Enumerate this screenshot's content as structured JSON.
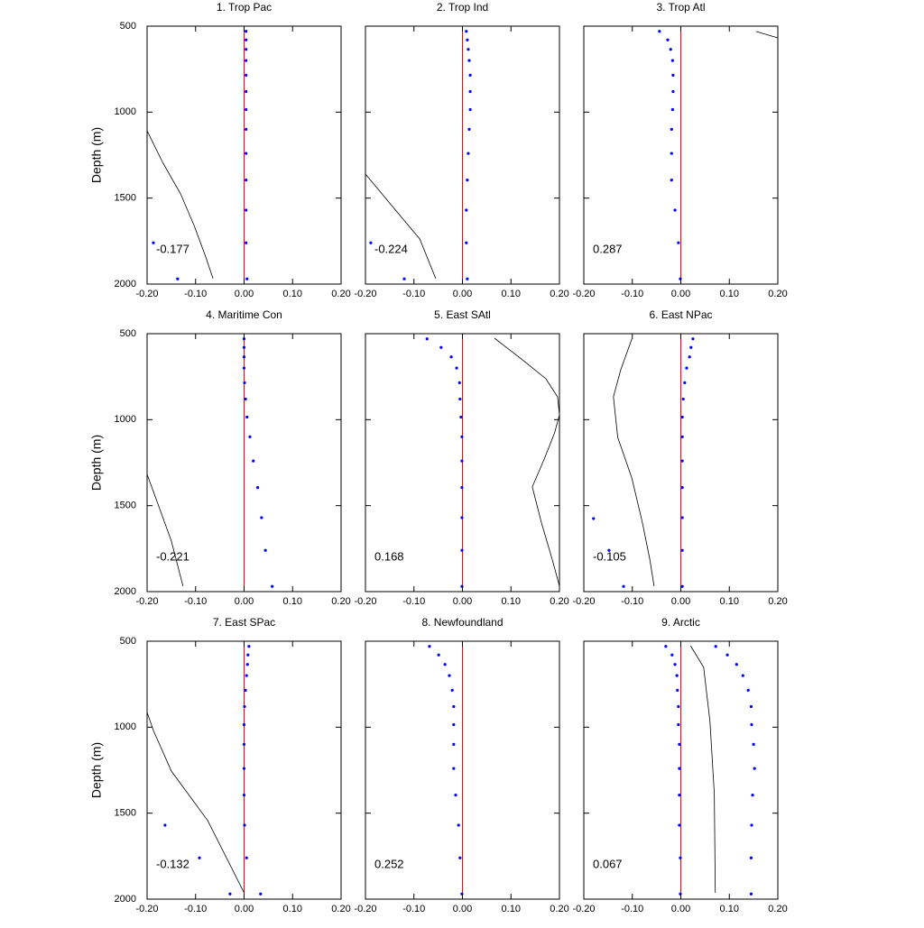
{
  "chart_data": [
    {
      "type": "profile",
      "title": "1. Trop Pac",
      "ylabel": "Depth (m)",
      "show_ytick_labels": true,
      "annotation": "-0.177",
      "xlim": [
        -0.2,
        0.2
      ],
      "xticks": [
        {
          "value": -0.2,
          "label": "-0.20"
        },
        {
          "value": -0.1,
          "label": "-0.10"
        },
        {
          "value": 0,
          "label": "0.00"
        },
        {
          "value": 0.1,
          "label": "0.10"
        },
        {
          "value": 0.2,
          "label": "0.20"
        }
      ],
      "ylim": [
        500,
        2000
      ],
      "yticks": [
        500,
        1000,
        1500,
        2000
      ],
      "y_reversed": true,
      "vline": 0,
      "vline_color": "#ff0000",
      "series": [
        {
          "style": "dots",
          "color": "#0000ff",
          "x": [
            0.004,
            0.004,
            0.004,
            0.004,
            0.004,
            0.004,
            0.004,
            0.004,
            0.004,
            0.004,
            0.004,
            0.004,
            0.006
          ],
          "y": [
            530,
            580,
            635,
            700,
            785,
            880,
            985,
            1100,
            1240,
            1395,
            1570,
            1760,
            1970
          ]
        },
        {
          "style": "dots",
          "color": "#0000ff",
          "x": [
            -0.187,
            -0.137
          ],
          "y": [
            1760,
            1970
          ]
        },
        {
          "style": "line",
          "color": "#000000",
          "x": [
            -0.2,
            -0.168,
            -0.131,
            -0.103,
            -0.079,
            -0.064
          ],
          "y": [
            1108,
            1292,
            1475,
            1659,
            1842,
            1968
          ]
        }
      ]
    },
    {
      "type": "profile",
      "title": "2. Trop Ind",
      "show_ytick_labels": false,
      "annotation": "-0.224",
      "xlim": [
        -0.2,
        0.2
      ],
      "xticks": [
        {
          "value": -0.2,
          "label": "-0.20"
        },
        {
          "value": -0.1,
          "label": "-0.10"
        },
        {
          "value": 0,
          "label": "0.00"
        },
        {
          "value": 0.1,
          "label": "0.10"
        },
        {
          "value": 0.2,
          "label": "0.20"
        }
      ],
      "ylim": [
        500,
        2000
      ],
      "yticks": [
        500,
        1000,
        1500,
        2000
      ],
      "y_reversed": true,
      "vline": 0,
      "vline_color": "#ff0000",
      "series": [
        {
          "style": "dots",
          "color": "#0000ff",
          "x": [
            0.008,
            0.01,
            0.012,
            0.014,
            0.016,
            0.016,
            0.016,
            0.014,
            0.012,
            0.01,
            0.008,
            0.008,
            0.01
          ],
          "y": [
            530,
            580,
            635,
            700,
            785,
            880,
            985,
            1100,
            1240,
            1395,
            1570,
            1760,
            1970
          ]
        },
        {
          "style": "dots",
          "color": "#0000ff",
          "x": [
            -0.189,
            -0.12
          ],
          "y": [
            1760,
            1970
          ]
        },
        {
          "style": "line",
          "color": "#000000",
          "x": [
            -0.2,
            -0.135,
            -0.088,
            -0.055
          ],
          "y": [
            1360,
            1580,
            1738,
            1968
          ]
        }
      ]
    },
    {
      "type": "profile",
      "title": "3. Trop Atl",
      "show_ytick_labels": false,
      "annotation": "0.287",
      "xlim": [
        -0.2,
        0.2
      ],
      "xticks": [
        {
          "value": -0.2,
          "label": "-0.20"
        },
        {
          "value": -0.1,
          "label": "-0.10"
        },
        {
          "value": 0,
          "label": "0.00"
        },
        {
          "value": 0.1,
          "label": "0.10"
        },
        {
          "value": 0.2,
          "label": "0.20"
        }
      ],
      "ylim": [
        500,
        2000
      ],
      "yticks": [
        500,
        1000,
        1500,
        2000
      ],
      "y_reversed": true,
      "vline": 0,
      "vline_color": "#ff0000",
      "series": [
        {
          "style": "dots",
          "color": "#0000ff",
          "x": [
            -0.044,
            -0.027,
            -0.021,
            -0.017,
            -0.016,
            -0.016,
            -0.017,
            -0.019,
            -0.019,
            -0.019,
            -0.012,
            -0.005,
            -0.001
          ],
          "y": [
            530,
            580,
            635,
            700,
            785,
            880,
            985,
            1100,
            1240,
            1395,
            1570,
            1760,
            1970
          ]
        },
        {
          "style": "line",
          "color": "#000000",
          "x": [
            0.155,
            0.2
          ],
          "y": [
            531,
            568
          ]
        }
      ]
    },
    {
      "type": "profile",
      "title": "4. Maritime Con",
      "ylabel": "Depth (m)",
      "show_ytick_labels": true,
      "annotation": "-0.221",
      "xlim": [
        -0.2,
        0.2
      ],
      "xticks": [
        {
          "value": -0.2,
          "label": "-0.20"
        },
        {
          "value": -0.1,
          "label": "-0.10"
        },
        {
          "value": 0,
          "label": "0.00"
        },
        {
          "value": 0.1,
          "label": "0.10"
        },
        {
          "value": 0.2,
          "label": "0.20"
        }
      ],
      "ylim": [
        500,
        2000
      ],
      "yticks": [
        500,
        1000,
        1500,
        2000
      ],
      "y_reversed": true,
      "vline": 0,
      "vline_color": "#ff0000",
      "series": [
        {
          "style": "dots",
          "color": "#0000ff",
          "x": [
            0,
            0,
            0,
            0,
            0.001,
            0.003,
            0.006,
            0.012,
            0.019,
            0.028,
            0.036,
            0.044,
            0.058
          ],
          "y": [
            530,
            580,
            635,
            700,
            785,
            880,
            985,
            1100,
            1240,
            1395,
            1570,
            1760,
            1970
          ]
        },
        {
          "style": "line",
          "color": "#000000",
          "x": [
            -0.2,
            -0.187,
            -0.15,
            -0.126
          ],
          "y": [
            1318,
            1418,
            1706,
            1968
          ]
        }
      ]
    },
    {
      "type": "profile",
      "title": "5. East SAtl",
      "show_ytick_labels": false,
      "annotation": "0.168",
      "xlim": [
        -0.2,
        0.2
      ],
      "xticks": [
        {
          "value": -0.2,
          "label": "-0.20"
        },
        {
          "value": -0.1,
          "label": "-0.10"
        },
        {
          "value": 0,
          "label": "0.00"
        },
        {
          "value": 0.1,
          "label": "0.10"
        },
        {
          "value": 0.2,
          "label": "0.20"
        }
      ],
      "ylim": [
        500,
        2000
      ],
      "yticks": [
        500,
        1000,
        1500,
        2000
      ],
      "y_reversed": true,
      "vline": 0,
      "vline_color": "#ff0000",
      "series": [
        {
          "style": "dots",
          "color": "#0000ff",
          "x": [
            -0.073,
            -0.044,
            -0.023,
            -0.012,
            -0.006,
            -0.005,
            -0.003,
            -0.001,
            -0.001,
            -0.001,
            -0.001,
            -0.001,
            -0.001
          ],
          "y": [
            530,
            580,
            635,
            700,
            785,
            880,
            985,
            1100,
            1240,
            1395,
            1570,
            1760,
            1970
          ]
        },
        {
          "style": "line",
          "color": "#000000",
          "x": [
            0.066,
            0.126,
            0.172,
            0.196,
            0.2,
            0.19,
            0.168,
            0.144,
            0.163,
            0.185,
            0.2
          ],
          "y": [
            526,
            657,
            762,
            867,
            972,
            1077,
            1234,
            1391,
            1601,
            1811,
            1968
          ]
        }
      ]
    },
    {
      "type": "profile",
      "title": "6. East NPac",
      "show_ytick_labels": false,
      "annotation": "-0.105",
      "xlim": [
        -0.2,
        0.2
      ],
      "xticks": [
        {
          "value": -0.2,
          "label": "-0.20"
        },
        {
          "value": -0.1,
          "label": "-0.10"
        },
        {
          "value": 0,
          "label": "0.00"
        },
        {
          "value": 0.1,
          "label": "0.10"
        },
        {
          "value": 0.2,
          "label": "0.20"
        }
      ],
      "ylim": [
        500,
        2000
      ],
      "yticks": [
        500,
        1000,
        1500,
        2000
      ],
      "y_reversed": true,
      "vline": 0,
      "vline_color": "#ff0000",
      "series": [
        {
          "style": "dots",
          "color": "#0000ff",
          "x": [
            0.025,
            0.021,
            0.018,
            0.012,
            0.008,
            0.005,
            0.003,
            0.003,
            0.003,
            0.003,
            0.003,
            0.003,
            0.003
          ],
          "y": [
            530,
            580,
            635,
            700,
            785,
            880,
            985,
            1100,
            1240,
            1395,
            1570,
            1760,
            1970
          ]
        },
        {
          "style": "dots",
          "color": "#0000ff",
          "x": [
            -0.18,
            -0.148,
            -0.118
          ],
          "y": [
            1575,
            1760,
            1970
          ]
        },
        {
          "style": "line",
          "color": "#000000",
          "x": [
            -0.101,
            -0.124,
            -0.139,
            -0.13,
            -0.101,
            -0.079,
            -0.064,
            -0.055
          ],
          "y": [
            531,
            710,
            867,
            1103,
            1339,
            1601,
            1811,
            1968
          ]
        }
      ]
    },
    {
      "type": "profile",
      "title": "7. East SPac",
      "ylabel": "Depth (m)",
      "show_ytick_labels": true,
      "annotation": "-0.132",
      "xlim": [
        -0.2,
        0.2
      ],
      "xticks": [
        {
          "value": -0.2,
          "label": "-0.20"
        },
        {
          "value": -0.1,
          "label": "-0.10"
        },
        {
          "value": 0,
          "label": "0.00"
        },
        {
          "value": 0.1,
          "label": "0.10"
        },
        {
          "value": 0.2,
          "label": "0.20"
        }
      ],
      "ylim": [
        500,
        2000
      ],
      "yticks": [
        500,
        1000,
        1500,
        2000
      ],
      "y_reversed": true,
      "vline": 0,
      "vline_color": "#ff0000",
      "series": [
        {
          "style": "dots",
          "color": "#0000ff",
          "x": [
            0.01,
            0.008,
            0.007,
            0.005,
            0.003,
            0.001,
            0,
            0,
            0,
            0,
            0.001,
            0.005,
            0.034
          ],
          "y": [
            530,
            580,
            635,
            700,
            785,
            880,
            985,
            1100,
            1240,
            1395,
            1570,
            1760,
            1970
          ]
        },
        {
          "style": "dots",
          "color": "#0000ff",
          "x": [
            -0.163,
            -0.092,
            -0.029
          ],
          "y": [
            1570,
            1760,
            1970
          ]
        },
        {
          "style": "line",
          "color": "#000000",
          "x": [
            -0.2,
            -0.187,
            -0.15,
            -0.075,
            0
          ],
          "y": [
            914,
            1019,
            1255,
            1543,
            1963
          ]
        }
      ]
    },
    {
      "type": "profile",
      "title": "8. Newfoundland",
      "show_ytick_labels": false,
      "annotation": "0.252",
      "xlim": [
        -0.2,
        0.2
      ],
      "xticks": [
        {
          "value": -0.2,
          "label": "-0.20"
        },
        {
          "value": -0.1,
          "label": "-0.10"
        },
        {
          "value": 0,
          "label": "0.00"
        },
        {
          "value": 0.1,
          "label": "0.10"
        },
        {
          "value": 0.2,
          "label": "0.20"
        }
      ],
      "ylim": [
        500,
        2000
      ],
      "yticks": [
        500,
        1000,
        1500,
        2000
      ],
      "y_reversed": true,
      "vline": 0,
      "vline_color": "#ff0000",
      "series": [
        {
          "style": "dots",
          "color": "#0000ff",
          "x": [
            -0.068,
            -0.049,
            -0.036,
            -0.027,
            -0.021,
            -0.018,
            -0.018,
            -0.018,
            -0.018,
            -0.014,
            -0.008,
            -0.005,
            -0.001
          ],
          "y": [
            530,
            580,
            635,
            700,
            785,
            880,
            985,
            1100,
            1240,
            1395,
            1570,
            1760,
            1970
          ]
        }
      ]
    },
    {
      "type": "profile",
      "title": "9. Arctic",
      "show_ytick_labels": false,
      "annotation": "0.067",
      "xlim": [
        -0.2,
        0.2
      ],
      "xticks": [
        {
          "value": -0.2,
          "label": "-0.20"
        },
        {
          "value": -0.1,
          "label": "-0.10"
        },
        {
          "value": 0,
          "label": "0.00"
        },
        {
          "value": 0.1,
          "label": "0.10"
        },
        {
          "value": 0.2,
          "label": "0.20"
        }
      ],
      "ylim": [
        500,
        2000
      ],
      "yticks": [
        500,
        1000,
        1500,
        2000
      ],
      "y_reversed": true,
      "vline": 0,
      "vline_color": "#ff0000",
      "series": [
        {
          "style": "dots",
          "color": "#0000ff",
          "x": [
            -0.031,
            -0.018,
            -0.012,
            -0.008,
            -0.007,
            -0.005,
            -0.005,
            -0.003,
            -0.003,
            -0.003,
            -0.003,
            -0.001,
            -0.001
          ],
          "y": [
            530,
            580,
            635,
            700,
            785,
            880,
            985,
            1100,
            1240,
            1395,
            1570,
            1760,
            1970
          ]
        },
        {
          "style": "dots",
          "color": "#0000ff",
          "x": [
            0.072,
            0.096,
            0.115,
            0.128,
            0.139,
            0.145,
            0.146,
            0.15,
            0.152,
            0.148,
            0.146,
            0.145,
            0.145
          ],
          "y": [
            530,
            580,
            635,
            700,
            785,
            880,
            985,
            1100,
            1240,
            1395,
            1570,
            1760,
            1970
          ]
        },
        {
          "style": "line",
          "color": "#000000",
          "x": [
            0.02,
            0.047,
            0.06,
            0.069,
            0.071
          ],
          "y": [
            526,
            652,
            967,
            1386,
            1963
          ]
        }
      ]
    }
  ]
}
